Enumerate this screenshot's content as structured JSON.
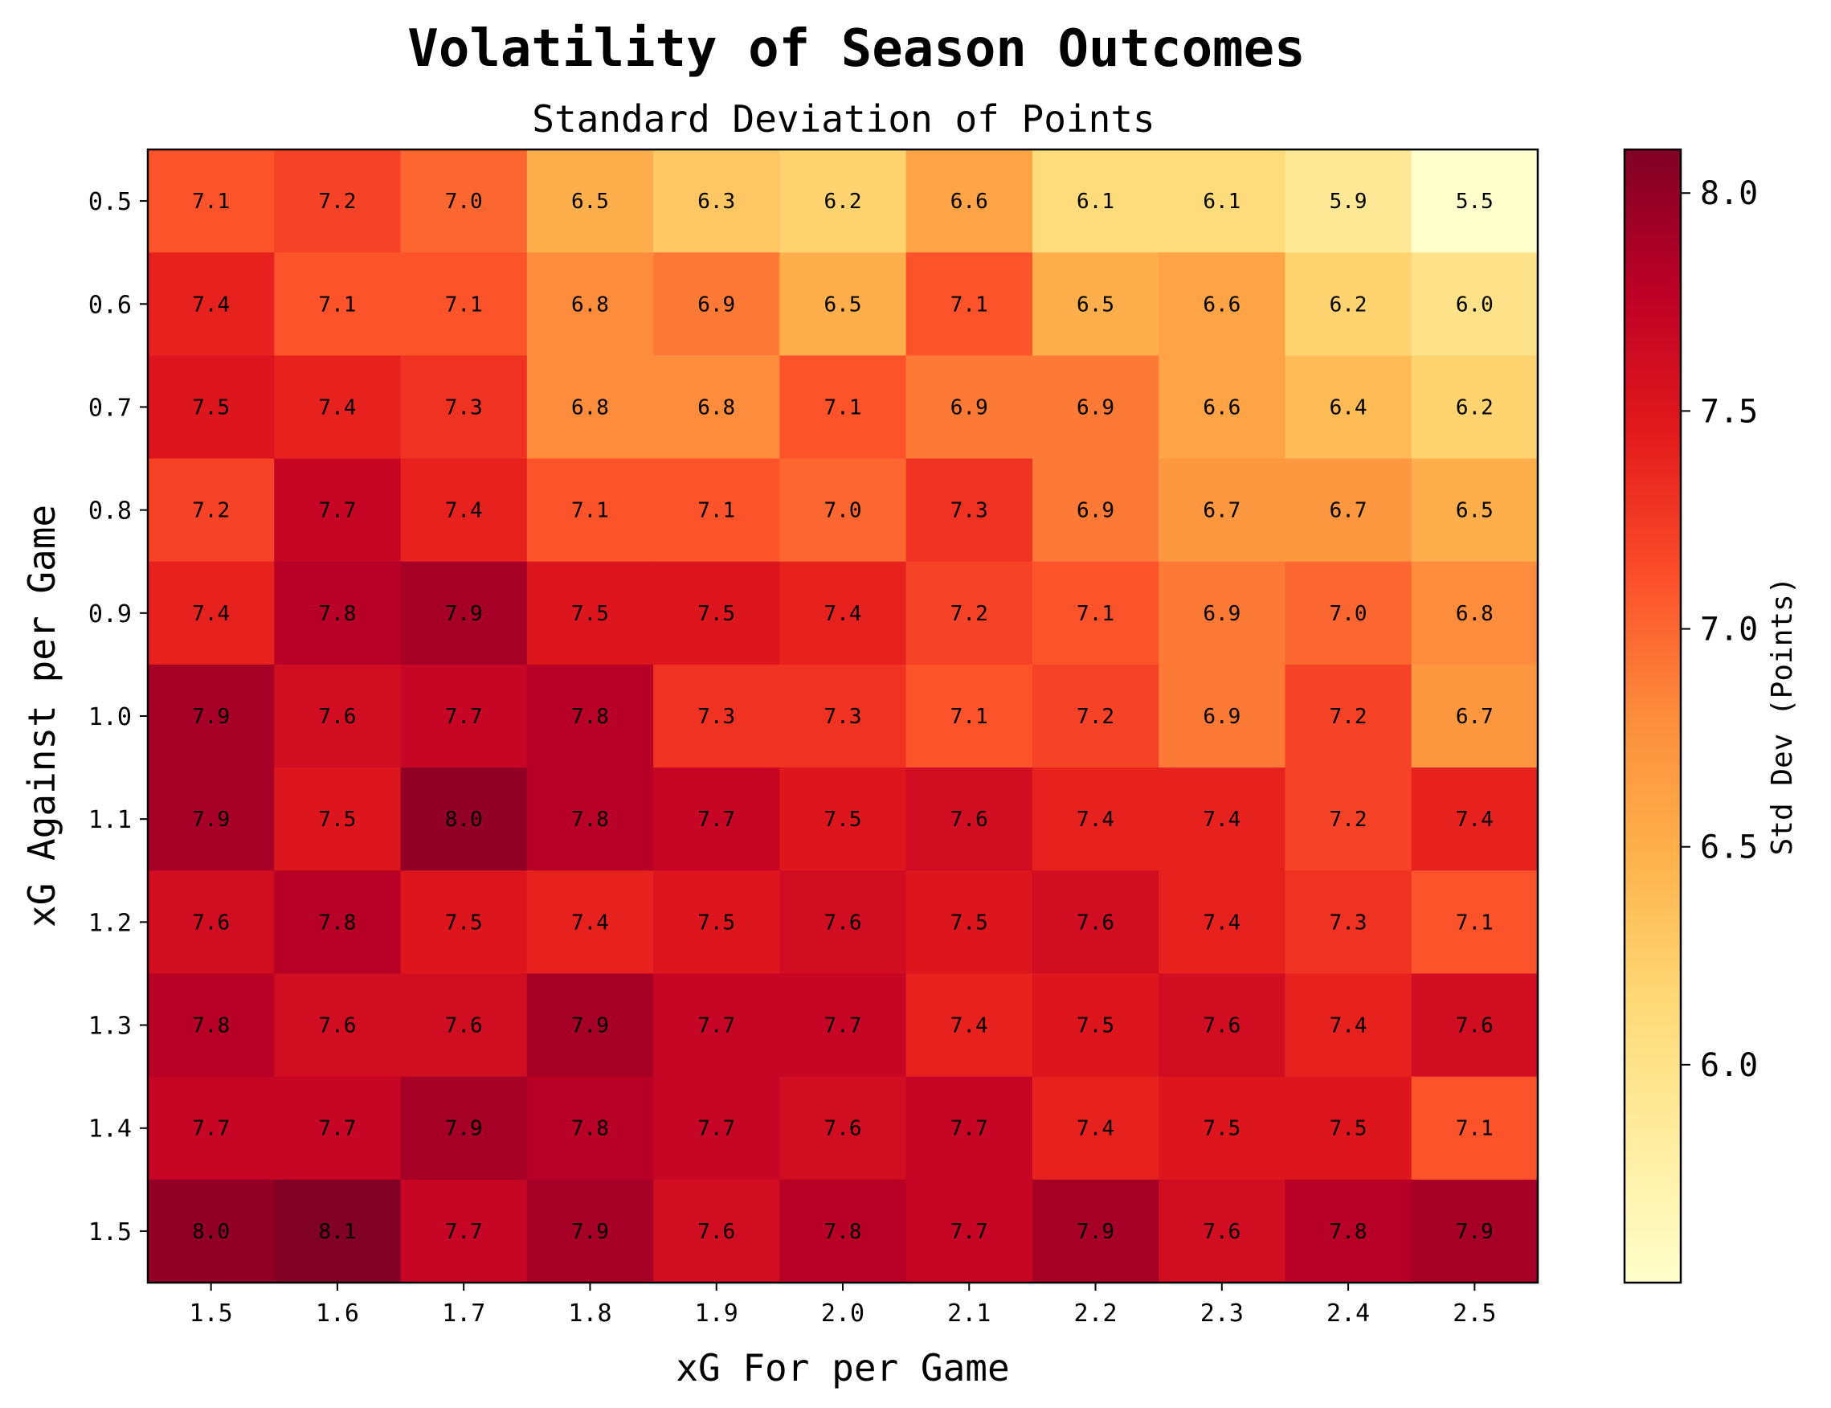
{
  "chart_data": {
    "type": "heatmap",
    "title": "Volatility of Season Outcomes",
    "subtitle": "Standard Deviation of Points",
    "xlabel": "xG For per Game",
    "ylabel": "xG Against per Game",
    "x_categories": [
      "1.5",
      "1.6",
      "1.7",
      "1.8",
      "1.9",
      "2.0",
      "2.1",
      "2.2",
      "2.3",
      "2.4",
      "2.5"
    ],
    "y_categories": [
      "0.5",
      "0.6",
      "0.7",
      "0.8",
      "0.9",
      "1.0",
      "1.1",
      "1.2",
      "1.3",
      "1.4",
      "1.5"
    ],
    "values": [
      [
        7.1,
        7.2,
        7.0,
        6.5,
        6.3,
        6.2,
        6.6,
        6.1,
        6.1,
        5.9,
        5.5
      ],
      [
        7.4,
        7.1,
        7.1,
        6.8,
        6.9,
        6.5,
        7.1,
        6.5,
        6.6,
        6.2,
        6.0
      ],
      [
        7.5,
        7.4,
        7.3,
        6.8,
        6.8,
        7.1,
        6.9,
        6.9,
        6.6,
        6.4,
        6.2
      ],
      [
        7.2,
        7.7,
        7.4,
        7.1,
        7.1,
        7.0,
        7.3,
        6.9,
        6.7,
        6.7,
        6.5
      ],
      [
        7.4,
        7.8,
        7.9,
        7.5,
        7.5,
        7.4,
        7.2,
        7.1,
        6.9,
        7.0,
        6.8
      ],
      [
        7.9,
        7.6,
        7.7,
        7.8,
        7.3,
        7.3,
        7.1,
        7.2,
        6.9,
        7.2,
        6.7
      ],
      [
        7.9,
        7.5,
        8.0,
        7.8,
        7.7,
        7.5,
        7.6,
        7.4,
        7.4,
        7.2,
        7.4
      ],
      [
        7.6,
        7.8,
        7.5,
        7.4,
        7.5,
        7.6,
        7.5,
        7.6,
        7.4,
        7.3,
        7.1
      ],
      [
        7.8,
        7.6,
        7.6,
        7.9,
        7.7,
        7.7,
        7.4,
        7.5,
        7.6,
        7.4,
        7.6
      ],
      [
        7.7,
        7.7,
        7.9,
        7.8,
        7.7,
        7.6,
        7.7,
        7.4,
        7.5,
        7.5,
        7.1
      ],
      [
        8.0,
        8.1,
        7.7,
        7.9,
        7.6,
        7.8,
        7.7,
        7.9,
        7.6,
        7.8,
        7.9
      ]
    ],
    "colormap": "YlOrRd",
    "colorbar": {
      "label": "Std Dev (Points)",
      "range": [
        5.5,
        8.1
      ],
      "ticks": [
        "6.0",
        "6.5",
        "7.0",
        "7.5",
        "8.0"
      ]
    }
  }
}
